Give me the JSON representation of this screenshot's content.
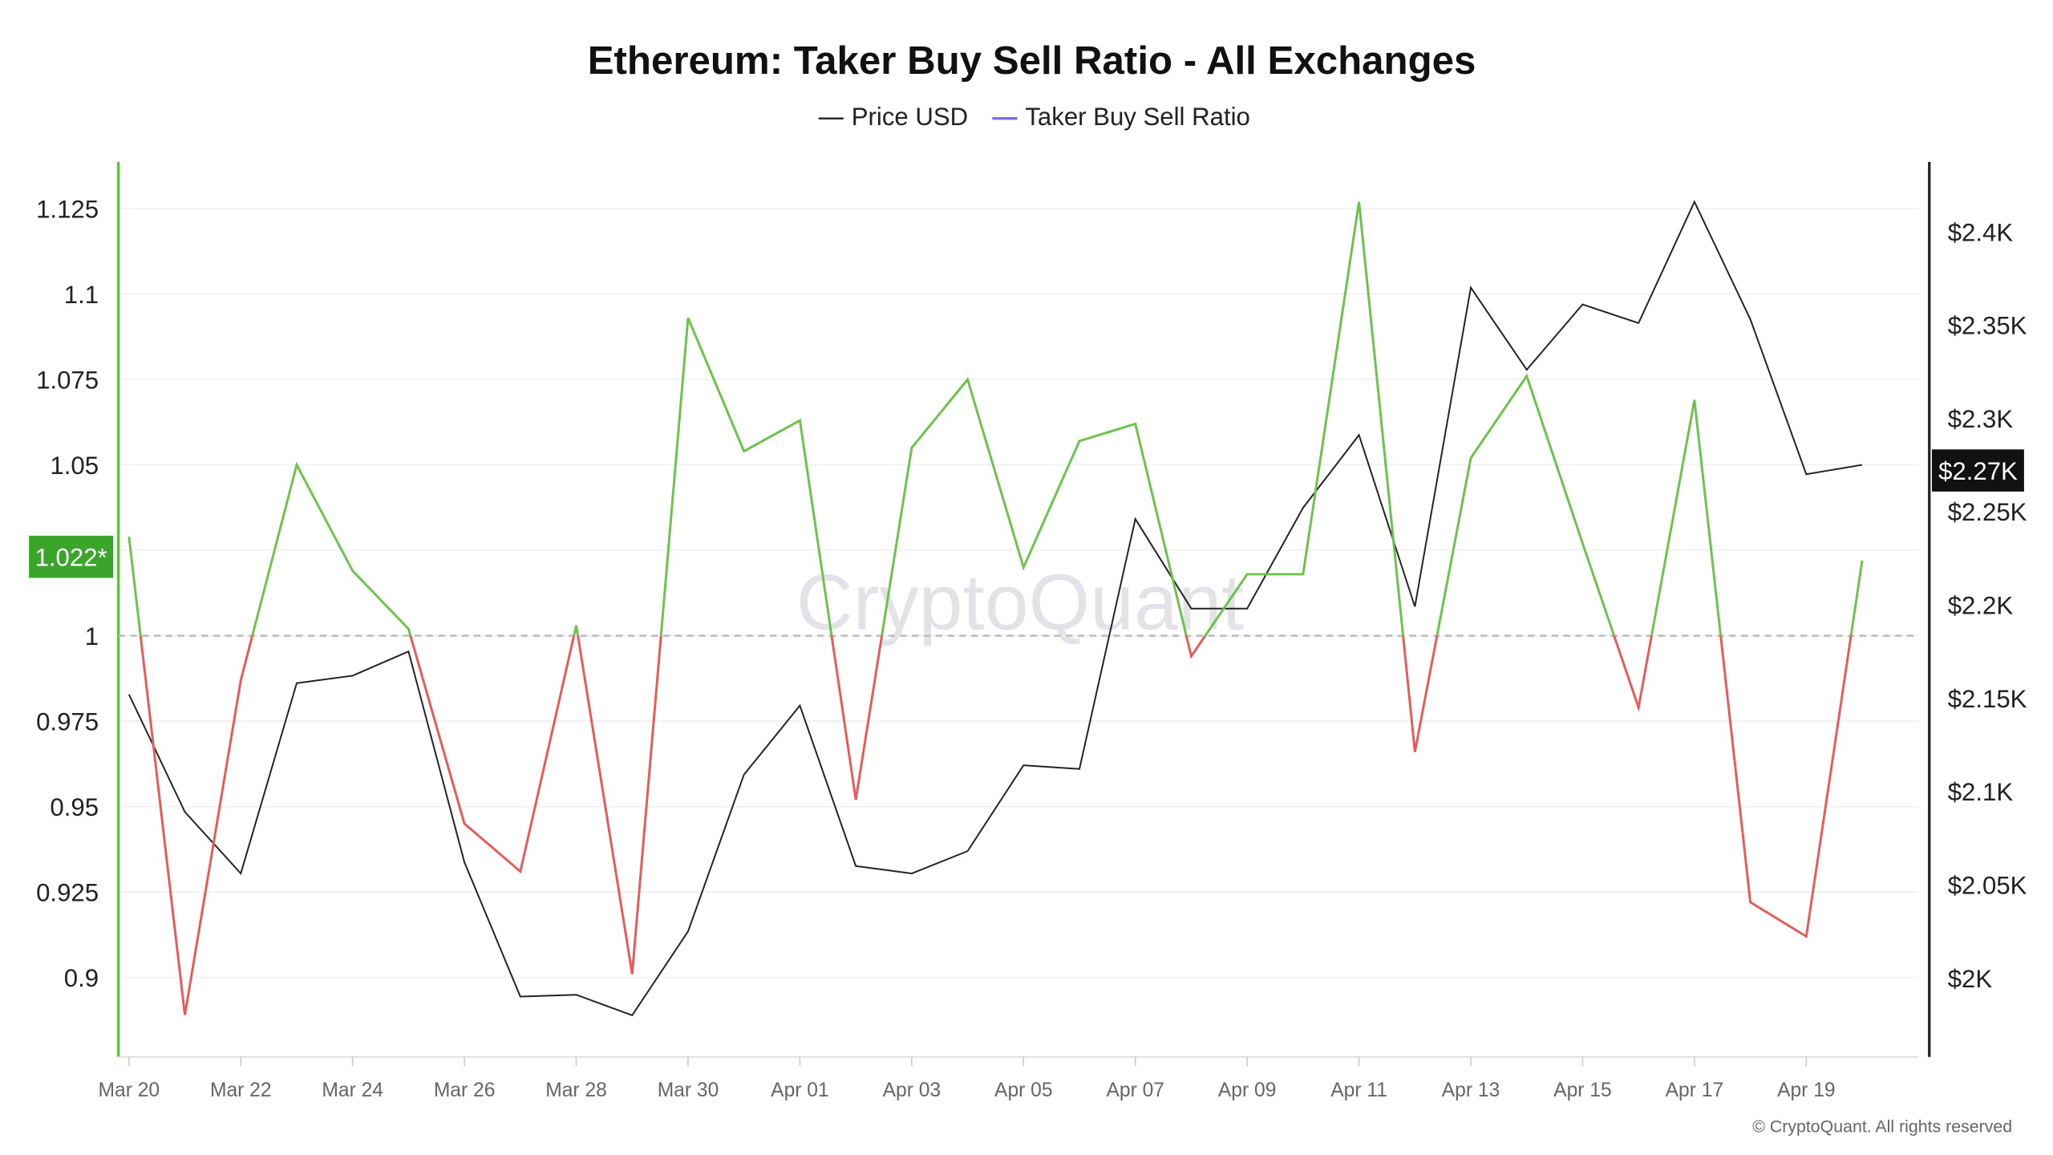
{
  "chart_data": {
    "type": "line",
    "title": "Ethereum: Taker Buy Sell Ratio - All Exchanges",
    "legend": [
      {
        "name": "Price USD",
        "color": "#222222"
      },
      {
        "name": "Taker Buy Sell Ratio",
        "color": "#7b6cf0"
      }
    ],
    "legend_placement": "top-center",
    "x": [
      "Mar 20",
      "Mar 21",
      "Mar 22",
      "Mar 23",
      "Mar 24",
      "Mar 25",
      "Mar 26",
      "Mar 27",
      "Mar 28",
      "Mar 29",
      "Mar 30",
      "Mar 31",
      "Apr 01",
      "Apr 02",
      "Apr 03",
      "Apr 04",
      "Apr 05",
      "Apr 06",
      "Apr 07",
      "Apr 08",
      "Apr 09",
      "Apr 10",
      "Apr 11",
      "Apr 12",
      "Apr 13",
      "Apr 14",
      "Apr 15",
      "Apr 16",
      "Apr 17",
      "Apr 18",
      "Apr 19",
      "Apr 20"
    ],
    "x_tick_labels": [
      "Mar 20",
      "Mar 22",
      "Mar 24",
      "Mar 26",
      "Mar 28",
      "Mar 30",
      "Apr 01",
      "Apr 03",
      "Apr 05",
      "Apr 07",
      "Apr 09",
      "Apr 11",
      "Apr 13",
      "Apr 15",
      "Apr 17",
      "Apr 19"
    ],
    "series": [
      {
        "name": "Taker Buy Sell Ratio",
        "axis": "left",
        "values": [
          1.029,
          0.889,
          0.987,
          1.05,
          1.019,
          1.002,
          0.945,
          0.931,
          1.003,
          0.901,
          1.093,
          1.054,
          1.063,
          0.952,
          1.055,
          1.075,
          1.02,
          1.057,
          1.062,
          0.994,
          1.018,
          1.018,
          1.127,
          0.966,
          1.052,
          1.076,
          1.027,
          0.979,
          1.069,
          0.922,
          0.912,
          1.022
        ],
        "color_above": "#6cc24a",
        "color_below": "#e85a5a"
      },
      {
        "name": "Price USD",
        "axis": "right",
        "values": [
          2152,
          2089,
          2056,
          2158,
          2162,
          2175,
          2062,
          1990,
          1991,
          1980,
          2025,
          2109,
          2146,
          2060,
          2056,
          2068,
          2114,
          2112,
          2246,
          2198,
          2198,
          2252,
          2291,
          2199,
          2370,
          2326,
          2361,
          2351,
          2416,
          2353,
          2270,
          2275
        ],
        "color": "#222222"
      }
    ],
    "y_left": {
      "ticks": [
        0.9,
        0.925,
        0.95,
        0.975,
        1,
        1.025,
        1.05,
        1.075,
        1.1,
        1.125
      ],
      "tick_labels": [
        "0.9",
        "0.925",
        "0.95",
        "0.975",
        "1",
        "",
        "1.05",
        "1.075",
        "1.1",
        "1.125"
      ],
      "range": [
        0.876,
        1.138
      ],
      "reference_line": 1,
      "current_label": "1.022*",
      "color": "#3aa52a"
    },
    "y_right": {
      "ticks": [
        2000,
        2050,
        2100,
        2150,
        2200,
        2250,
        2300,
        2350,
        2400
      ],
      "tick_labels": [
        "$2K",
        "$2.05K",
        "$2.1K",
        "$2.15K",
        "$2.2K",
        "$2.25K",
        "$2.3K",
        "$2.35K",
        "$2.4K"
      ],
      "current_label": "$2.27K",
      "current_value": 2272
    },
    "grid": true,
    "watermark": "CryptoQuant",
    "copyright": "© CryptoQuant. All rights reserved"
  }
}
